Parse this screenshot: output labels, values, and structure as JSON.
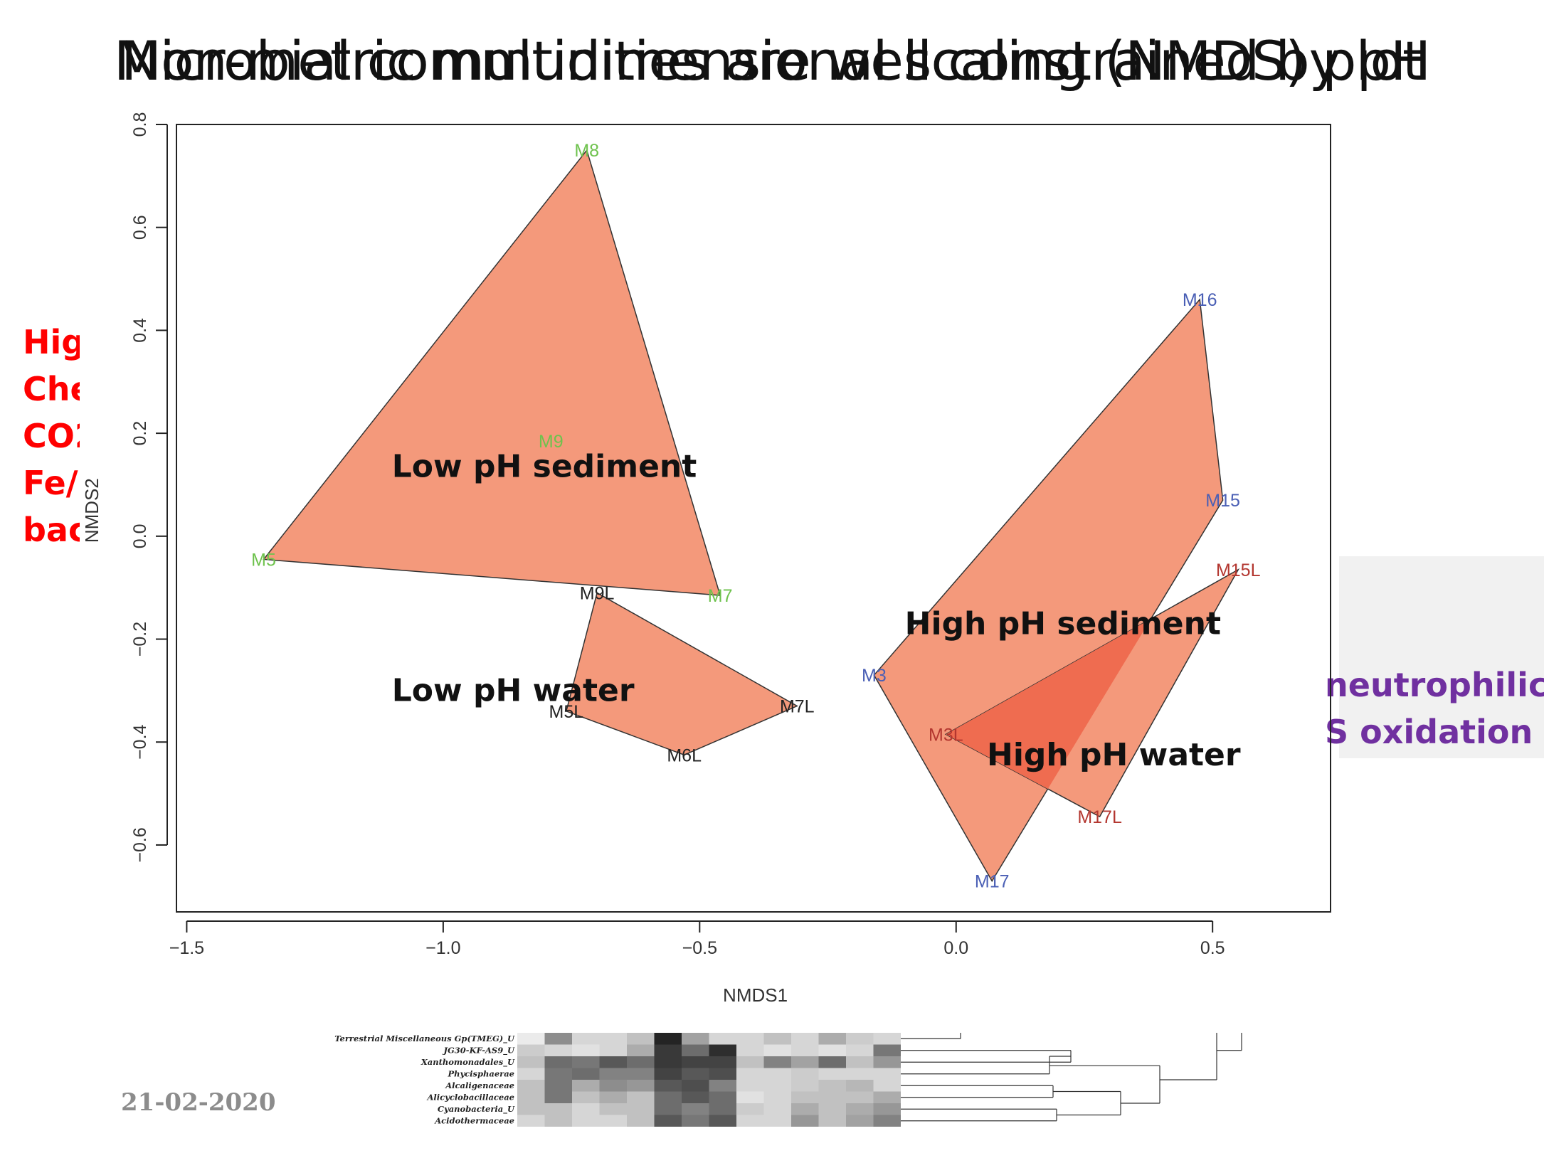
{
  "slide": {
    "title_front": "Non-metric multidimensional scaling (NMDS) plot",
    "title_back": "Microbial communities are well constrained by pH",
    "side_left_lines": [
      "Hig",
      "Che",
      "CO2",
      "Fe/",
      "bac"
    ],
    "side_right_lines": [
      "neutrophilic",
      "S oxidation"
    ],
    "date": "21-02-2020",
    "colors": {
      "title": "#111111",
      "left_text": "#ff0000",
      "right_text": "#7030a0",
      "date": "#8c8c8c"
    }
  },
  "chart_data": {
    "type": "scatter",
    "title": "",
    "xlabel": "NMDS1",
    "ylabel": "NMDS2",
    "xlim": [
      -1.52,
      0.73
    ],
    "ylim": [
      -0.73,
      0.8
    ],
    "xticks": [
      -1.5,
      -1.0,
      -0.5,
      0.0,
      0.5
    ],
    "xtick_labels": [
      "−1.5",
      "−1.0",
      "−0.5",
      "0.0",
      "0.5"
    ],
    "yticks": [
      -0.6,
      -0.4,
      -0.2,
      0.0,
      0.2,
      0.4,
      0.6,
      0.8
    ],
    "ytick_labels": [
      "−0.6",
      "−0.4",
      "−0.2",
      "0.0",
      "0.2",
      "0.4",
      "0.6",
      "0.8"
    ],
    "grid": false,
    "colors": {
      "hull_fill": "#f4997b",
      "overlap_fill": "#ef6c50",
      "green": "#6ec24d",
      "blue": "#4a5fb5",
      "black": "#222222",
      "red": "#b3362f"
    },
    "points": [
      {
        "label": "M8",
        "x": -0.72,
        "y": 0.75,
        "color": "green"
      },
      {
        "label": "M9",
        "x": -0.79,
        "y": 0.185,
        "color": "green"
      },
      {
        "label": "M5",
        "x": -1.35,
        "y": -0.045,
        "color": "green"
      },
      {
        "label": "M7",
        "x": -0.46,
        "y": -0.115,
        "color": "green"
      },
      {
        "label": "M9L",
        "x": -0.7,
        "y": -0.11,
        "color": "black"
      },
      {
        "label": "M5L",
        "x": -0.76,
        "y": -0.34,
        "color": "black"
      },
      {
        "label": "M7L",
        "x": -0.31,
        "y": -0.33,
        "color": "black"
      },
      {
        "label": "M6L",
        "x": -0.53,
        "y": -0.425,
        "color": "black"
      },
      {
        "label": "M16",
        "x": 0.475,
        "y": 0.46,
        "color": "blue"
      },
      {
        "label": "M15",
        "x": 0.52,
        "y": 0.07,
        "color": "blue"
      },
      {
        "label": "M3",
        "x": -0.16,
        "y": -0.27,
        "color": "blue"
      },
      {
        "label": "M17",
        "x": 0.07,
        "y": -0.67,
        "color": "blue"
      },
      {
        "label": "M15L",
        "x": 0.55,
        "y": -0.065,
        "color": "red"
      },
      {
        "label": "M3L",
        "x": -0.02,
        "y": -0.385,
        "color": "red"
      },
      {
        "label": "M17L",
        "x": 0.28,
        "y": -0.545,
        "color": "red"
      }
    ],
    "groups": [
      {
        "name": "Low pH sediment",
        "hull": [
          "M8",
          "M7",
          "M5"
        ],
        "label_at": [
          -1.1,
          0.115
        ]
      },
      {
        "name": "Low pH water",
        "hull": [
          "M9L",
          "M7L",
          "M6L",
          "M5L"
        ],
        "label_at": [
          -1.1,
          -0.32
        ]
      },
      {
        "name": "High pH sediment",
        "hull": [
          "M16",
          "M15",
          "M17",
          "M3"
        ],
        "label_at": [
          -0.1,
          -0.19
        ]
      },
      {
        "name": "High pH water",
        "hull": [
          "M15L",
          "M17L",
          "M3L"
        ],
        "label_at": [
          0.06,
          -0.445
        ]
      }
    ]
  },
  "heatmap": {
    "rows": [
      "Terrestrial Miscellaneous Gp(TMEG)_U",
      "JG30-KF-AS9_U",
      "Xanthomonadales_U",
      "Phycisphaerae",
      "Alcaligenaceae",
      "Alicyclobacillaceae",
      "Cyanobacteria_U",
      "Acidothermaceae"
    ],
    "values": [
      [
        0,
        0.45,
        0.1,
        0.1,
        0.2,
        0.95,
        0.35,
        0.1,
        0.1,
        0.2,
        0.1,
        0.3,
        0.15,
        0.1
      ],
      [
        0.15,
        0.1,
        0.05,
        0.1,
        0.3,
        0.85,
        0.6,
        0.9,
        0.1,
        0.05,
        0.1,
        0.05,
        0.1,
        0.55
      ],
      [
        0.2,
        0.6,
        0.55,
        0.7,
        0.6,
        0.85,
        0.8,
        0.8,
        0.2,
        0.5,
        0.35,
        0.6,
        0.2,
        0.4
      ],
      [
        0.1,
        0.55,
        0.6,
        0.5,
        0.5,
        0.8,
        0.7,
        0.75,
        0.1,
        0.1,
        0.15,
        0.1,
        0.1,
        0.1
      ],
      [
        0.2,
        0.55,
        0.3,
        0.45,
        0.4,
        0.7,
        0.75,
        0.5,
        0.1,
        0.1,
        0.15,
        0.2,
        0.25,
        0.1
      ],
      [
        0.2,
        0.55,
        0.2,
        0.3,
        0.2,
        0.6,
        0.7,
        0.6,
        0.05,
        0.1,
        0.2,
        0.2,
        0.2,
        0.3
      ],
      [
        0.2,
        0.2,
        0.1,
        0.2,
        0.2,
        0.6,
        0.5,
        0.6,
        0.15,
        0.1,
        0.3,
        0.2,
        0.3,
        0.4
      ],
      [
        0.1,
        0.2,
        0.1,
        0.1,
        0.2,
        0.7,
        0.55,
        0.7,
        0.1,
        0.1,
        0.4,
        0.2,
        0.35,
        0.5
      ]
    ]
  }
}
